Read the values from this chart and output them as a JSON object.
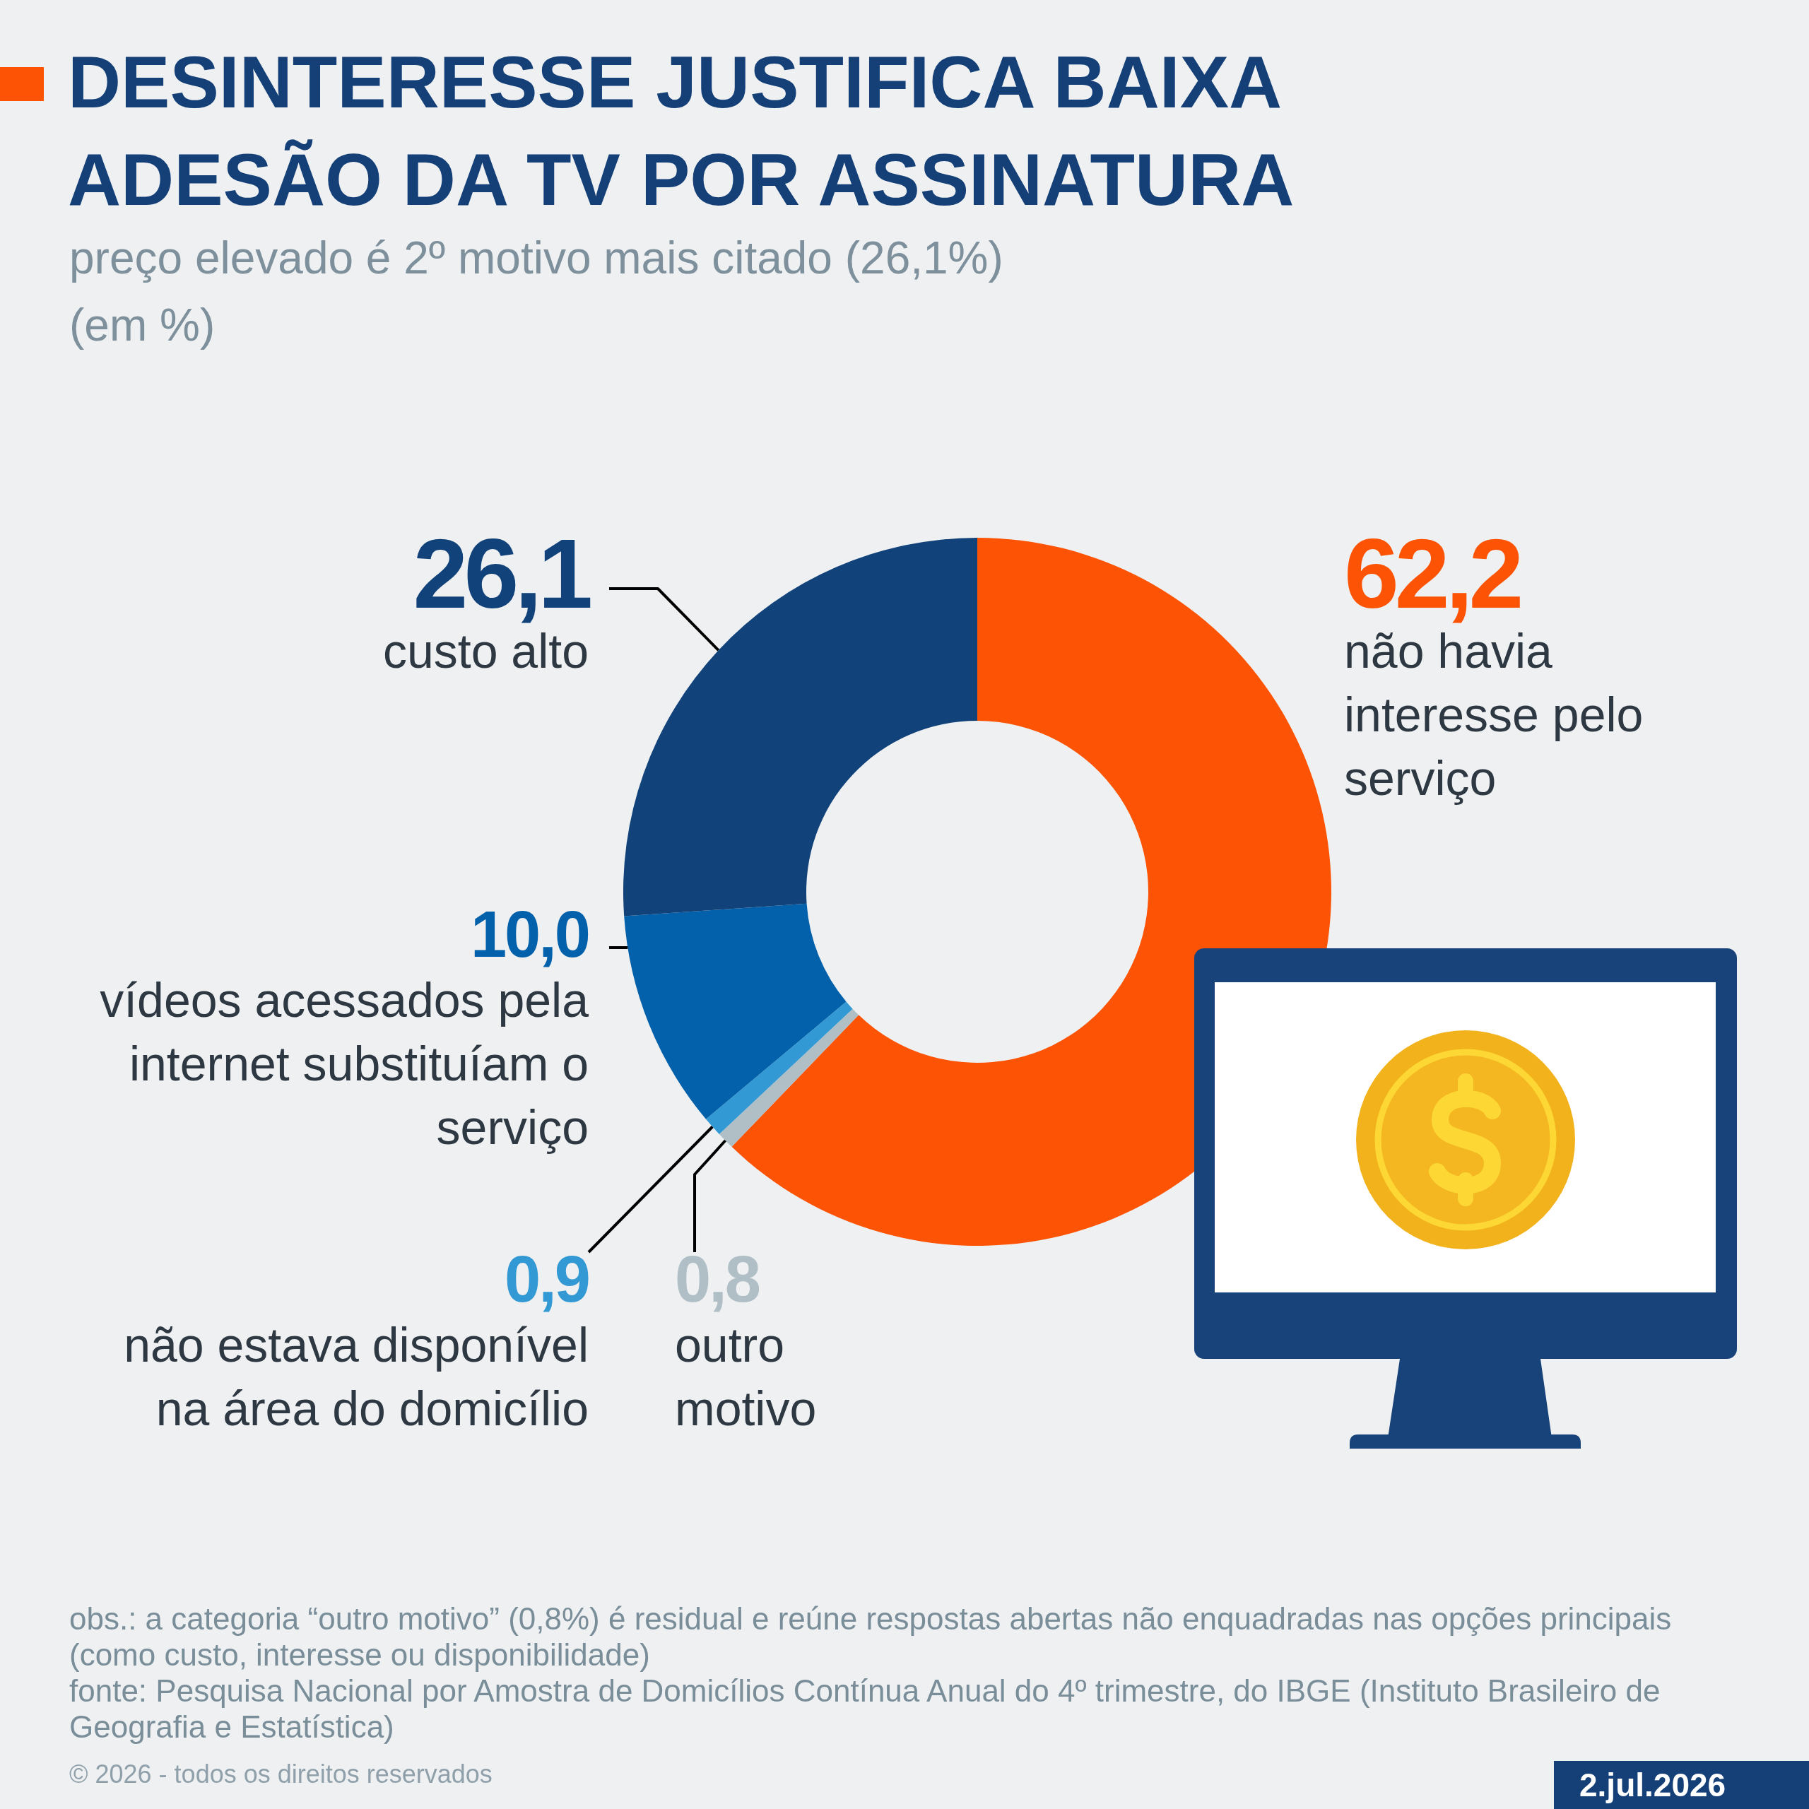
{
  "chart_data": {
    "type": "donut",
    "title": "DESINTERESSE JUSTIFICA BAIXA ADESÃO DA TV POR ASSINATURA",
    "subtitle": "preço elevado é 2º motivo mais citado (26,1%)\n(em %)",
    "categories": [
      "não havia interesse pelo serviço",
      "outro motivo",
      "não estava disponível na área do domicílio",
      "vídeos acessados pela internet substituíam o serviço",
      "custo alto"
    ],
    "values": [
      62.2,
      0.8,
      0.9,
      10.0,
      26.1
    ],
    "colors": [
      "#fc5304",
      "#b0bfc6",
      "#3399d4",
      "#0261aa",
      "#11427a"
    ],
    "value_labels": [
      "62,2",
      "0,8",
      "0,9",
      "10,0",
      "26,1"
    ],
    "annotations": [
      "obs.: a categoria “outro motivo” (0,8%) é residual e reúne respostas abertas não enquadradas nas opções principais (como custo, interesse ou disponibilidade)",
      "fonte: Pesquisa Nacional por Amostra de Domicílios Contínua Anual do 4º trimestre, do IBGE (Instituto Brasileiro de Geografia e Estatística)",
      "© 2026 - todos os direitos reservados",
      "2.jul.2026"
    ]
  }
}
